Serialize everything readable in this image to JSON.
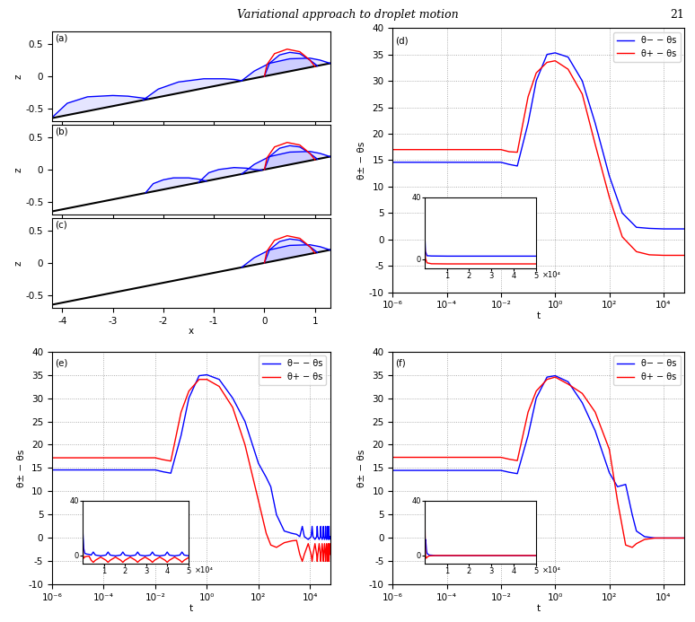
{
  "header": {
    "title": "Variational approach to droplet motion",
    "page": "21"
  },
  "chart_data": [
    {
      "type": "line",
      "title": "(a)",
      "ylabel": "z",
      "xlim": [
        -4.2,
        1.3
      ],
      "ylim": [
        -0.7,
        0.7
      ],
      "xticks": [
        -4,
        -3,
        -2,
        -1,
        0,
        1
      ],
      "yticks": [
        -0.5,
        0,
        0.5
      ],
      "tick_labels": "y",
      "series": [
        {
          "type": "line",
          "color": "#000000",
          "x": [
            -4.2,
            1.3
          ],
          "values": [
            -0.65,
            0.2
          ]
        },
        {
          "type": "area",
          "color": "#0000ff",
          "x": [
            -4.2,
            -3.9,
            -3.5,
            -3.0,
            -2.7,
            -2.5,
            -2.3
          ],
          "values": [
            -0.64,
            -0.42,
            -0.32,
            -0.3,
            -0.31,
            -0.33,
            -0.35
          ]
        },
        {
          "type": "area",
          "color": "#0000ff",
          "x": [
            -2.4,
            -2.1,
            -1.7,
            -1.2,
            -0.8,
            -0.6,
            -0.45
          ],
          "values": [
            -0.37,
            -0.2,
            -0.09,
            -0.04,
            -0.04,
            -0.05,
            -0.07
          ]
        },
        {
          "type": "area",
          "color": "#0000ff",
          "x": [
            -0.45,
            -0.2,
            0.1,
            0.5,
            0.9,
            1.1,
            1.3
          ],
          "values": [
            -0.07,
            0.08,
            0.2,
            0.27,
            0.28,
            0.25,
            0.2
          ]
        },
        {
          "type": "area",
          "color": "#0000ff",
          "x": [
            0,
            0.1,
            0.3,
            0.5,
            0.7,
            0.9,
            1.05
          ],
          "values": [
            0,
            0.2,
            0.33,
            0.37,
            0.35,
            0.25,
            0.16
          ]
        },
        {
          "type": "line",
          "color": "#ff0000",
          "x": [
            0,
            0.05,
            0.2,
            0.45,
            0.7,
            0.9,
            1.0
          ],
          "values": [
            0,
            0.18,
            0.35,
            0.42,
            0.38,
            0.25,
            0.15
          ]
        }
      ]
    },
    {
      "type": "line",
      "title": "(b)",
      "ylabel": "z",
      "xlim": [
        -4.2,
        1.3
      ],
      "ylim": [
        -0.7,
        0.7
      ],
      "xticks": [
        -4,
        -3,
        -2,
        -1,
        0,
        1
      ],
      "yticks": [
        -0.5,
        0,
        0.5
      ],
      "tick_labels": "y",
      "series": [
        {
          "type": "line",
          "color": "#000000",
          "x": [
            -4.2,
            1.3
          ],
          "values": [
            -0.65,
            0.2
          ]
        },
        {
          "type": "area",
          "color": "#0000ff",
          "x": [
            -2.35,
            -2.2,
            -2.0,
            -1.8,
            -1.5,
            -1.3,
            -1.15
          ],
          "values": [
            -0.36,
            -0.22,
            -0.16,
            -0.13,
            -0.13,
            -0.15,
            -0.18
          ]
        },
        {
          "type": "area",
          "color": "#0000ff",
          "x": [
            -1.3,
            -1.1,
            -0.9,
            -0.6,
            -0.35,
            -0.2,
            -0.05
          ],
          "values": [
            -0.2,
            -0.05,
            0.0,
            0.03,
            0.02,
            0.0,
            -0.01
          ]
        },
        {
          "type": "area",
          "color": "#0000ff",
          "x": [
            -0.45,
            -0.2,
            0.1,
            0.5,
            0.9,
            1.1,
            1.3
          ],
          "values": [
            -0.07,
            0.08,
            0.2,
            0.27,
            0.28,
            0.25,
            0.2
          ]
        },
        {
          "type": "area",
          "color": "#0000ff",
          "x": [
            0,
            0.1,
            0.3,
            0.5,
            0.7,
            0.9,
            1.05
          ],
          "values": [
            0,
            0.2,
            0.33,
            0.37,
            0.35,
            0.25,
            0.16
          ]
        },
        {
          "type": "line",
          "color": "#ff0000",
          "x": [
            0,
            0.05,
            0.2,
            0.45,
            0.7,
            0.9,
            1.0
          ],
          "values": [
            0,
            0.18,
            0.35,
            0.42,
            0.38,
            0.25,
            0.15
          ]
        }
      ]
    },
    {
      "type": "line",
      "title": "(c)",
      "xlabel": "x",
      "ylabel": "z",
      "xlim": [
        -4.2,
        1.3
      ],
      "ylim": [
        -0.7,
        0.7
      ],
      "xticks": [
        -4,
        -3,
        -2,
        -1,
        0,
        1
      ],
      "yticks": [
        -0.5,
        0,
        0.5
      ],
      "series": [
        {
          "type": "line",
          "color": "#000000",
          "x": [
            -4.2,
            1.3
          ],
          "values": [
            -0.65,
            0.2
          ]
        },
        {
          "type": "area",
          "color": "#0000ff",
          "x": [
            -0.45,
            -0.2,
            0.1,
            0.5,
            0.9,
            1.1,
            1.3
          ],
          "values": [
            -0.07,
            0.08,
            0.2,
            0.27,
            0.28,
            0.25,
            0.2
          ]
        },
        {
          "type": "area",
          "color": "#0000ff",
          "x": [
            0,
            0.1,
            0.3,
            0.5,
            0.7,
            0.9,
            1.05
          ],
          "values": [
            0,
            0.2,
            0.33,
            0.37,
            0.35,
            0.25,
            0.16
          ]
        },
        {
          "type": "line",
          "color": "#ff0000",
          "x": [
            0,
            0.05,
            0.2,
            0.45,
            0.7,
            0.9,
            1.0
          ],
          "values": [
            0,
            0.18,
            0.35,
            0.42,
            0.38,
            0.25,
            0.15
          ]
        }
      ]
    },
    {
      "type": "line",
      "title": "(d)",
      "xlabel": "t",
      "ylabel": "θ± − θs",
      "log": "x",
      "grid": true,
      "legend": "upper right",
      "xlim": [
        1e-06,
        60000
      ],
      "ylim": [
        -10,
        40
      ],
      "xticks": [
        {
          "value": 1e-06,
          "label": "10⁻⁶"
        },
        {
          "value": 0.0001,
          "label": "10⁻⁴"
        },
        {
          "value": 0.01,
          "label": "10⁻²"
        },
        {
          "value": 1,
          "label": "10⁰"
        },
        {
          "value": 100,
          "label": "10²"
        },
        {
          "value": 10000,
          "label": "10⁴"
        }
      ],
      "yticks": [
        -10,
        -5,
        0,
        5,
        10,
        15,
        20,
        25,
        30,
        35,
        40
      ],
      "x": [
        1e-06,
        0.0001,
        0.01,
        0.02,
        0.04,
        0.1,
        0.2,
        0.5,
        1,
        3,
        10,
        30,
        100,
        300,
        1000,
        3000,
        10000,
        60000
      ],
      "series": [
        {
          "name": "θ− − θs",
          "color": "#0000ff",
          "values": [
            14.6,
            14.6,
            14.6,
            14.2,
            13.9,
            22,
            30,
            35,
            35.3,
            34.5,
            30,
            22,
            12,
            5,
            2.3,
            2.1,
            2,
            2
          ]
        },
        {
          "name": "θ+ − θs",
          "color": "#ff0000",
          "values": [
            17,
            17,
            17,
            16.6,
            16.5,
            27,
            31.5,
            33.5,
            33.8,
            32.2,
            27.5,
            18,
            8,
            0.5,
            -2.3,
            -2.9,
            -3,
            -3
          ]
        }
      ],
      "inset": {
        "type": "line",
        "xlim": [
          0,
          50000
        ],
        "ylim": [
          -6,
          40
        ],
        "xticks": [
          {
            "value": 10000,
            "label": "1"
          },
          {
            "value": 20000,
            "label": "2"
          },
          {
            "value": 30000,
            "label": "3"
          },
          {
            "value": 40000,
            "label": "4"
          },
          {
            "value": 50000,
            "label": "5"
          }
        ],
        "yticks": [
          0,
          40
        ],
        "annotation": "×10⁴"
      }
    },
    {
      "type": "line",
      "title": "(e)",
      "xlabel": "t",
      "ylabel": "θ± − θs",
      "log": "x",
      "grid": true,
      "legend": "upper right",
      "xlim": [
        1e-06,
        60000
      ],
      "ylim": [
        -10,
        40
      ],
      "xticks": [
        {
          "value": 1e-06,
          "label": "10⁻⁶"
        },
        {
          "value": 0.0001,
          "label": "10⁻⁴"
        },
        {
          "value": 0.01,
          "label": "10⁻²"
        },
        {
          "value": 1,
          "label": "10⁰"
        },
        {
          "value": 100,
          "label": "10²"
        },
        {
          "value": 10000,
          "label": "10⁴"
        }
      ],
      "yticks": [
        -10,
        -5,
        0,
        5,
        10,
        15,
        20,
        25,
        30,
        35,
        40
      ],
      "x": [
        1e-06,
        0.0001,
        0.01,
        0.02,
        0.04,
        0.1,
        0.2,
        0.5,
        1,
        3,
        10,
        30,
        100,
        200,
        300,
        500,
        1000,
        2000,
        3000,
        4000,
        5000,
        6000,
        8500,
        11000,
        12000,
        13000,
        15500,
        18000,
        19000,
        20000,
        22500,
        25000,
        26000,
        27000,
        29500,
        32000,
        33000,
        34000,
        36500,
        39000,
        40000,
        41000,
        43500,
        46000,
        47000,
        48000,
        50500,
        53000,
        54000,
        55000,
        57500,
        60000
      ],
      "series": [
        {
          "name": "θ− − θs",
          "color": "#0000ff",
          "values": [
            14.6,
            14.6,
            14.6,
            14.2,
            13.9,
            22,
            30,
            34.8,
            35,
            34,
            30,
            25,
            16,
            13,
            11,
            5,
            1.5,
            1.0,
            0.8,
            0.3,
            2.5,
            0.3,
            -0.3,
            0.3,
            2.5,
            0.3,
            -0.3,
            0.3,
            2.5,
            0.3,
            -0.3,
            0.3,
            2.5,
            0.3,
            -0.3,
            0.3,
            2.5,
            0.3,
            -0.3,
            0.3,
            2.5,
            0.3,
            -0.3,
            0.3,
            2.5,
            0.3,
            -0.3,
            0.3,
            2.5,
            0.3,
            -0.3,
            0.3
          ]
        },
        {
          "name": "θ+ − θs",
          "color": "#ff0000",
          "values": [
            17.2,
            17.2,
            17.2,
            16.8,
            16.5,
            27,
            31.5,
            34,
            34,
            32.5,
            28,
            20,
            8,
            1,
            -1.5,
            -2,
            -1,
            -0.6,
            -0.5,
            -3.5,
            -5,
            -3.5,
            -1.2,
            -3.5,
            -5,
            -3.5,
            -1.2,
            -3.5,
            -5,
            -3.5,
            -1.2,
            -3.5,
            -5,
            -3.5,
            -1.2,
            -3.5,
            -5,
            -3.5,
            -1.2,
            -3.5,
            -5,
            -3.5,
            -1.2,
            -3.5,
            -5,
            -3.5,
            -1.2,
            -3.5,
            -5,
            -3.5,
            -1.2,
            -3.5
          ]
        }
      ],
      "inset": {
        "type": "line",
        "xlim": [
          0,
          50000
        ],
        "ylim": [
          -6,
          40
        ],
        "xticks": [
          {
            "value": 10000,
            "label": "1"
          },
          {
            "value": 20000,
            "label": "2"
          },
          {
            "value": 30000,
            "label": "3"
          },
          {
            "value": 40000,
            "label": "4"
          },
          {
            "value": 50000,
            "label": "5"
          }
        ],
        "yticks": [
          0,
          40
        ],
        "annotation": "×10⁴"
      }
    },
    {
      "type": "line",
      "title": "(f)",
      "xlabel": "t",
      "ylabel": "θ± − θs",
      "log": "x",
      "grid": true,
      "legend": "upper right",
      "xlim": [
        1e-06,
        60000
      ],
      "ylim": [
        -10,
        40
      ],
      "xticks": [
        {
          "value": 1e-06,
          "label": "10⁻⁶"
        },
        {
          "value": 0.0001,
          "label": "10⁻⁴"
        },
        {
          "value": 0.01,
          "label": "10⁻²"
        },
        {
          "value": 1,
          "label": "10⁰"
        },
        {
          "value": 100,
          "label": "10²"
        },
        {
          "value": 10000,
          "label": "10⁴"
        }
      ],
      "yticks": [
        -10,
        -5,
        0,
        5,
        10,
        15,
        20,
        25,
        30,
        35,
        40
      ],
      "x": [
        1e-06,
        0.0001,
        0.01,
        0.02,
        0.04,
        0.1,
        0.2,
        0.5,
        1,
        3,
        10,
        30,
        100,
        200,
        400,
        700,
        1000,
        2000,
        5000,
        10000,
        60000
      ],
      "series": [
        {
          "name": "θ− − θs",
          "color": "#0000ff",
          "values": [
            14.5,
            14.5,
            14.5,
            14.1,
            13.8,
            22,
            30,
            34.5,
            34.8,
            33.5,
            29,
            23,
            14,
            11,
            11.5,
            5,
            1.5,
            0.3,
            0,
            0,
            0
          ]
        },
        {
          "name": "θ+ − θs",
          "color": "#ff0000",
          "values": [
            17.3,
            17.3,
            17.3,
            16.9,
            16.6,
            27,
            31.5,
            34,
            34.5,
            33,
            31,
            27,
            19,
            8,
            -1.5,
            -2,
            -1.2,
            -0.3,
            0,
            0,
            0
          ]
        }
      ],
      "inset": {
        "type": "line",
        "xlim": [
          0,
          50000
        ],
        "ylim": [
          -6,
          40
        ],
        "xticks": [
          {
            "value": 10000,
            "label": "1"
          },
          {
            "value": 20000,
            "label": "2"
          },
          {
            "value": 30000,
            "label": "3"
          },
          {
            "value": 40000,
            "label": "4"
          },
          {
            "value": 50000,
            "label": "5"
          }
        ],
        "yticks": [
          0,
          40
        ],
        "annotation": "×10⁴"
      }
    }
  ]
}
